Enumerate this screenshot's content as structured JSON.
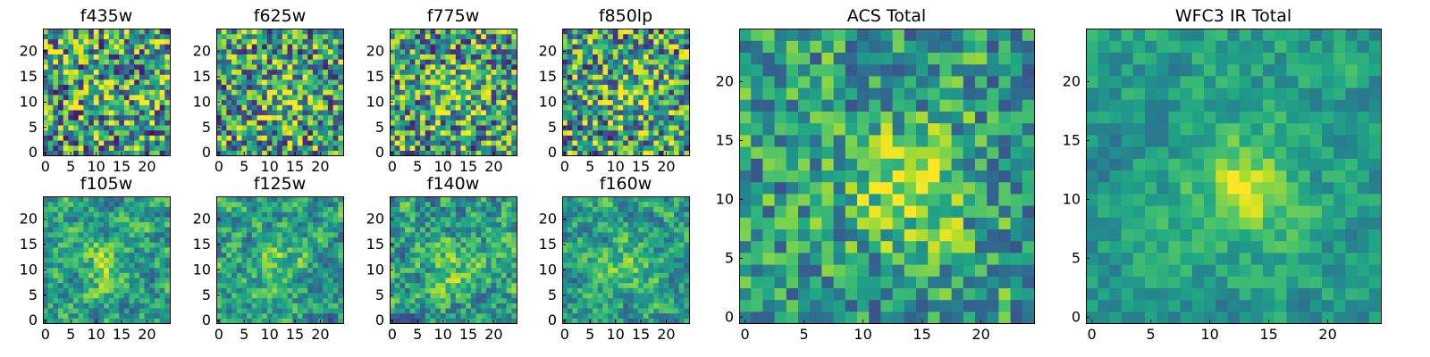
{
  "chart_data": [
    {
      "type": "heatmap",
      "title": "f435w",
      "grid_size": 25,
      "x_ticks": [
        "0",
        "5",
        "10",
        "15",
        "20"
      ],
      "y_ticks": [
        "0",
        "5",
        "10",
        "15",
        "20"
      ],
      "colormap": "viridis",
      "seed": 11,
      "center": [
        12,
        12
      ],
      "peak": 0.2,
      "noise": 0.9,
      "blur": 0
    },
    {
      "type": "heatmap",
      "title": "f625w",
      "grid_size": 25,
      "x_ticks": [
        "0",
        "5",
        "10",
        "15",
        "20"
      ],
      "y_ticks": [
        "0",
        "5",
        "10",
        "15",
        "20"
      ],
      "colormap": "viridis",
      "seed": 23,
      "center": [
        13,
        11
      ],
      "peak": 0.45,
      "noise": 0.85,
      "blur": 0
    },
    {
      "type": "heatmap",
      "title": "f775w",
      "grid_size": 25,
      "x_ticks": [
        "0",
        "5",
        "10",
        "15",
        "20"
      ],
      "y_ticks": [
        "0",
        "5",
        "10",
        "15",
        "20"
      ],
      "colormap": "viridis",
      "seed": 37,
      "center": [
        13,
        12
      ],
      "peak": 0.5,
      "noise": 0.85,
      "blur": 0
    },
    {
      "type": "heatmap",
      "title": "f850lp",
      "grid_size": 25,
      "x_ticks": [
        "0",
        "5",
        "10",
        "15",
        "20"
      ],
      "y_ticks": [
        "0",
        "5",
        "10",
        "15",
        "20"
      ],
      "colormap": "viridis",
      "seed": 41,
      "center": [
        14,
        12
      ],
      "peak": 0.45,
      "noise": 0.85,
      "blur": 0
    },
    {
      "type": "heatmap",
      "title": "ACS Total",
      "grid_size": 25,
      "x_ticks": [
        "0",
        "5",
        "10",
        "15",
        "20"
      ],
      "y_ticks": [
        "0",
        "5",
        "10",
        "15",
        "20"
      ],
      "colormap": "viridis",
      "seed": 53,
      "center": [
        14,
        11
      ],
      "peak": 0.7,
      "noise": 0.55,
      "blur": 0
    },
    {
      "type": "heatmap",
      "title": "WFC3 IR Total",
      "grid_size": 25,
      "x_ticks": [
        "0",
        "5",
        "10",
        "15",
        "20"
      ],
      "y_ticks": [
        "0",
        "5",
        "10",
        "15",
        "20"
      ],
      "colormap": "viridis",
      "seed": 67,
      "center": [
        13,
        11
      ],
      "peak": 0.6,
      "noise": 0.45,
      "blur": 1
    },
    {
      "type": "heatmap",
      "title": "f105w",
      "grid_size": 25,
      "x_ticks": [
        "0",
        "5",
        "10",
        "15",
        "20"
      ],
      "y_ticks": [
        "0",
        "5",
        "10",
        "15",
        "20"
      ],
      "colormap": "viridis",
      "seed": 71,
      "center": [
        12,
        11
      ],
      "peak": 0.45,
      "noise": 0.75,
      "blur": 1
    },
    {
      "type": "heatmap",
      "title": "f125w",
      "grid_size": 25,
      "x_ticks": [
        "0",
        "5",
        "10",
        "15",
        "20"
      ],
      "y_ticks": [
        "0",
        "5",
        "10",
        "15",
        "20"
      ],
      "colormap": "viridis",
      "seed": 83,
      "center": [
        12,
        11
      ],
      "peak": 0.5,
      "noise": 0.75,
      "blur": 1
    },
    {
      "type": "heatmap",
      "title": "f140w",
      "grid_size": 25,
      "x_ticks": [
        "0",
        "5",
        "10",
        "15",
        "20"
      ],
      "y_ticks": [
        "0",
        "5",
        "10",
        "15",
        "20"
      ],
      "colormap": "viridis",
      "seed": 97,
      "center": [
        12,
        11
      ],
      "peak": 0.35,
      "noise": 0.8,
      "blur": 1
    },
    {
      "type": "heatmap",
      "title": "f160w",
      "grid_size": 25,
      "x_ticks": [
        "0",
        "5",
        "10",
        "15",
        "20"
      ],
      "y_ticks": [
        "0",
        "5",
        "10",
        "15",
        "20"
      ],
      "colormap": "viridis",
      "seed": 101,
      "center": [
        13,
        11
      ],
      "peak": 0.45,
      "noise": 0.7,
      "blur": 1
    }
  ]
}
